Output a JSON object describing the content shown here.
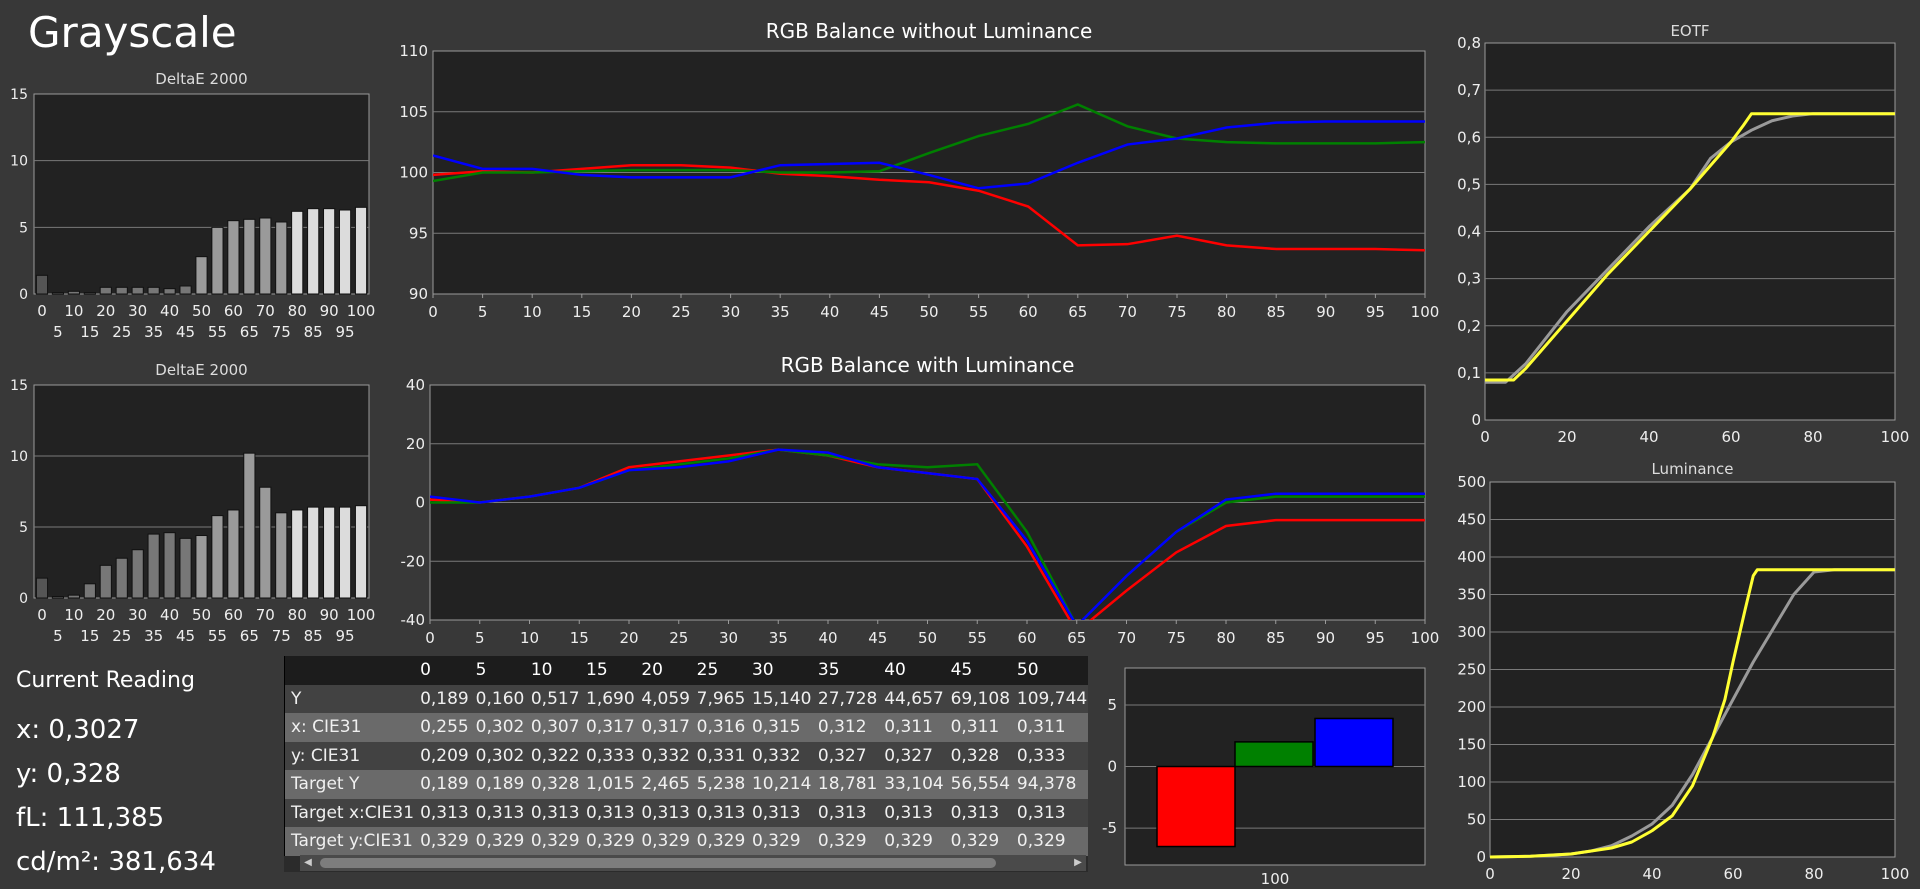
{
  "page_title": "Grayscale",
  "current_reading": {
    "heading": "Current Reading",
    "lines": [
      {
        "label": "x: ",
        "value": "0,3027"
      },
      {
        "label": "y: ",
        "value": "0,328"
      },
      {
        "label": "fL: ",
        "value": "111,385"
      },
      {
        "label": "cd/m²: ",
        "value": "381,634"
      }
    ]
  },
  "colors": {
    "red": "#ff0000",
    "green": "#008000",
    "blue": "#0000ff",
    "yellow": "#ffff33",
    "gray": "#9a9a9a"
  },
  "chart_data": [
    {
      "id": "deltae_top",
      "type": "bar",
      "title": "DeltaE 2000",
      "ylim": [
        0,
        15
      ],
      "yticks": [
        "0",
        "5",
        "10",
        "15"
      ],
      "xticks_row1": [
        "0",
        "10",
        "20",
        "30",
        "40",
        "50",
        "60",
        "70",
        "80",
        "90",
        "100"
      ],
      "xticks_row2": [
        "5",
        "15",
        "25",
        "35",
        "45",
        "55",
        "65",
        "75",
        "85",
        "95"
      ],
      "categories": [
        "0",
        "5",
        "10",
        "15",
        "20",
        "25",
        "30",
        "35",
        "40",
        "45",
        "50",
        "55",
        "60",
        "65",
        "70",
        "75",
        "80",
        "85",
        "90",
        "95",
        "100"
      ],
      "values": [
        1.4,
        0.1,
        0.2,
        0.1,
        0.5,
        0.5,
        0.5,
        0.5,
        0.4,
        0.6,
        2.8,
        5.0,
        5.5,
        5.6,
        5.7,
        5.4,
        6.2,
        6.4,
        6.4,
        6.3,
        6.5
      ]
    },
    {
      "id": "deltae_bottom",
      "type": "bar",
      "title": "DeltaE 2000",
      "ylim": [
        0,
        15
      ],
      "yticks": [
        "0",
        "5",
        "10",
        "15"
      ],
      "xticks_row1": [
        "0",
        "10",
        "20",
        "30",
        "40",
        "50",
        "60",
        "70",
        "80",
        "90",
        "100"
      ],
      "xticks_row2": [
        "5",
        "15",
        "25",
        "35",
        "45",
        "55",
        "65",
        "75",
        "85",
        "95"
      ],
      "categories": [
        "0",
        "5",
        "10",
        "15",
        "20",
        "25",
        "30",
        "35",
        "40",
        "45",
        "50",
        "55",
        "60",
        "65",
        "70",
        "75",
        "80",
        "85",
        "90",
        "95",
        "100"
      ],
      "values": [
        1.4,
        0.1,
        0.2,
        1.0,
        2.3,
        2.8,
        3.4,
        4.5,
        4.6,
        4.2,
        4.4,
        5.8,
        6.2,
        10.2,
        7.8,
        6.0,
        6.2,
        6.4,
        6.4,
        6.4,
        6.5
      ]
    },
    {
      "id": "rgb_no_lum",
      "type": "line",
      "title": "RGB Balance without Luminance",
      "ylim": [
        90,
        110
      ],
      "yticks": [
        "90",
        "95",
        "100",
        "105",
        "110"
      ],
      "xticks": [
        "0",
        "5",
        "10",
        "15",
        "20",
        "25",
        "30",
        "35",
        "40",
        "45",
        "50",
        "55",
        "60",
        "65",
        "70",
        "75",
        "80",
        "85",
        "90",
        "95",
        "100"
      ],
      "x": [
        0,
        5,
        10,
        15,
        20,
        25,
        30,
        35,
        40,
        45,
        50,
        55,
        60,
        65,
        70,
        75,
        80,
        85,
        90,
        95,
        100
      ],
      "series": [
        {
          "color": "red",
          "values": [
            99.8,
            100.1,
            100.0,
            100.3,
            100.6,
            100.6,
            100.4,
            99.9,
            99.7,
            99.4,
            99.2,
            98.5,
            97.2,
            94.0,
            94.1,
            94.8,
            94.0,
            93.7,
            93.7,
            93.7,
            93.6
          ]
        },
        {
          "color": "green",
          "values": [
            99.3,
            100.0,
            100.0,
            100.1,
            100.2,
            100.2,
            100.2,
            100.0,
            100.0,
            100.1,
            101.6,
            103.0,
            104.0,
            105.6,
            103.8,
            102.8,
            102.5,
            102.4,
            102.4,
            102.4,
            102.5
          ]
        },
        {
          "color": "blue",
          "values": [
            101.4,
            100.3,
            100.3,
            99.8,
            99.6,
            99.6,
            99.6,
            100.6,
            100.7,
            100.8,
            99.8,
            98.7,
            99.1,
            100.8,
            102.3,
            102.8,
            103.7,
            104.1,
            104.2,
            104.2,
            104.2
          ]
        }
      ]
    },
    {
      "id": "rgb_with_lum",
      "type": "line",
      "title": "RGB Balance with Luminance",
      "ylim": [
        -40,
        40
      ],
      "yticks": [
        "-40",
        "-20",
        "0",
        "20",
        "40"
      ],
      "xticks": [
        "0",
        "5",
        "10",
        "15",
        "20",
        "25",
        "30",
        "35",
        "40",
        "45",
        "50",
        "55",
        "60",
        "65",
        "70",
        "75",
        "80",
        "85",
        "90",
        "95",
        "100"
      ],
      "x": [
        0,
        5,
        10,
        15,
        20,
        25,
        30,
        35,
        40,
        45,
        50,
        55,
        60,
        65,
        70,
        75,
        80,
        85,
        90,
        95,
        100
      ],
      "series": [
        {
          "color": "red",
          "values": [
            1,
            0,
            2,
            5,
            12,
            14,
            16,
            18,
            16,
            12,
            10,
            8,
            -15,
            -44,
            -30,
            -17,
            -8,
            -6,
            -6,
            -6,
            -6
          ]
        },
        {
          "color": "green",
          "values": [
            0,
            0,
            2,
            5,
            11,
            13,
            15,
            18,
            16,
            13,
            12,
            13,
            -10,
            -42,
            -25,
            -10,
            0,
            2,
            2,
            2,
            2
          ]
        },
        {
          "color": "blue",
          "values": [
            2,
            0,
            2,
            5,
            11,
            12,
            14,
            18,
            17,
            12,
            10,
            8,
            -13,
            -42,
            -25,
            -10,
            1,
            3,
            3,
            3,
            3
          ]
        }
      ]
    },
    {
      "id": "eotf",
      "type": "line",
      "title": "EOTF",
      "ylim": [
        0,
        0.8
      ],
      "xlim": [
        0,
        100
      ],
      "yticks": [
        "0",
        "0,1",
        "0,2",
        "0,3",
        "0,4",
        "0,5",
        "0,6",
        "0,7",
        "0,8"
      ],
      "xticks": [
        "0",
        "20",
        "40",
        "60",
        "80",
        "100"
      ],
      "series": [
        {
          "color": "gray",
          "x": [
            0,
            5,
            10,
            20,
            30,
            40,
            50,
            55,
            60,
            65,
            70,
            75,
            80,
            85,
            90,
            100
          ],
          "values": [
            0.08,
            0.08,
            0.12,
            0.23,
            0.32,
            0.41,
            0.49,
            0.555,
            0.59,
            0.615,
            0.635,
            0.645,
            0.65,
            0.65,
            0.65,
            0.65
          ]
        },
        {
          "color": "yellow",
          "x": [
            0,
            7,
            10,
            20,
            30,
            40,
            50,
            55,
            60,
            63,
            65,
            70,
            80,
            90,
            100
          ],
          "values": [
            0.085,
            0.085,
            0.11,
            0.21,
            0.31,
            0.4,
            0.49,
            0.54,
            0.59,
            0.625,
            0.65,
            0.65,
            0.65,
            0.65,
            0.65
          ]
        }
      ]
    },
    {
      "id": "luminance",
      "type": "line",
      "title": "Luminance",
      "ylim": [
        0,
        500
      ],
      "xlim": [
        0,
        100
      ],
      "yticks": [
        "0",
        "50",
        "100",
        "150",
        "200",
        "250",
        "300",
        "350",
        "400",
        "450",
        "500"
      ],
      "xticks": [
        "0",
        "20",
        "40",
        "60",
        "80",
        "100"
      ],
      "series": [
        {
          "color": "gray",
          "x": [
            0,
            10,
            20,
            25,
            30,
            35,
            40,
            45,
            50,
            55,
            60,
            65,
            70,
            75,
            80,
            85,
            90,
            100
          ],
          "values": [
            0,
            1,
            4,
            8,
            15,
            28,
            44,
            69,
            110,
            160,
            210,
            260,
            305,
            350,
            380,
            383,
            383,
            383
          ]
        },
        {
          "color": "yellow",
          "x": [
            0,
            10,
            20,
            30,
            35,
            40,
            45,
            50,
            55,
            58,
            60,
            63,
            65,
            66,
            70,
            80,
            90,
            100
          ],
          "values": [
            0,
            1,
            4,
            12,
            20,
            35,
            55,
            95,
            160,
            210,
            260,
            330,
            375,
            383,
            383,
            383,
            383,
            383
          ]
        }
      ]
    },
    {
      "id": "rgb_bars",
      "type": "bar",
      "ylim": [
        -8,
        8
      ],
      "yticks": [
        "-5",
        "0",
        "5"
      ],
      "xlabel": "100",
      "categories": [
        "red",
        "green",
        "blue"
      ],
      "values": [
        -6.5,
        2.0,
        3.9
      ]
    }
  ],
  "table": {
    "columns": [
      "0",
      "5",
      "10",
      "15",
      "20",
      "25",
      "30",
      "35",
      "40",
      "45",
      "50"
    ],
    "rows": [
      {
        "name": "Y",
        "cells": [
          "0,189",
          "0,160",
          "0,517",
          "1,690",
          "4,059",
          "7,965",
          "15,140",
          "27,728",
          "44,657",
          "69,108",
          "109,744"
        ]
      },
      {
        "name": "x: CIE31",
        "cells": [
          "0,255",
          "0,302",
          "0,307",
          "0,317",
          "0,317",
          "0,316",
          "0,315",
          "0,312",
          "0,311",
          "0,311",
          "0,311"
        ]
      },
      {
        "name": "y: CIE31",
        "cells": [
          "0,209",
          "0,302",
          "0,322",
          "0,333",
          "0,332",
          "0,331",
          "0,332",
          "0,327",
          "0,327",
          "0,328",
          "0,333"
        ]
      },
      {
        "name": "Target Y",
        "cells": [
          "0,189",
          "0,189",
          "0,328",
          "1,015",
          "2,465",
          "5,238",
          "10,214",
          "18,781",
          "33,104",
          "56,554",
          "94,378"
        ]
      },
      {
        "name": "Target x:CIE31",
        "cells": [
          "0,313",
          "0,313",
          "0,313",
          "0,313",
          "0,313",
          "0,313",
          "0,313",
          "0,313",
          "0,313",
          "0,313",
          "0,313"
        ]
      },
      {
        "name": "Target y:CIE31",
        "cells": [
          "0,329",
          "0,329",
          "0,329",
          "0,329",
          "0,329",
          "0,329",
          "0,329",
          "0,329",
          "0,329",
          "0,329",
          "0,329"
        ]
      }
    ]
  }
}
